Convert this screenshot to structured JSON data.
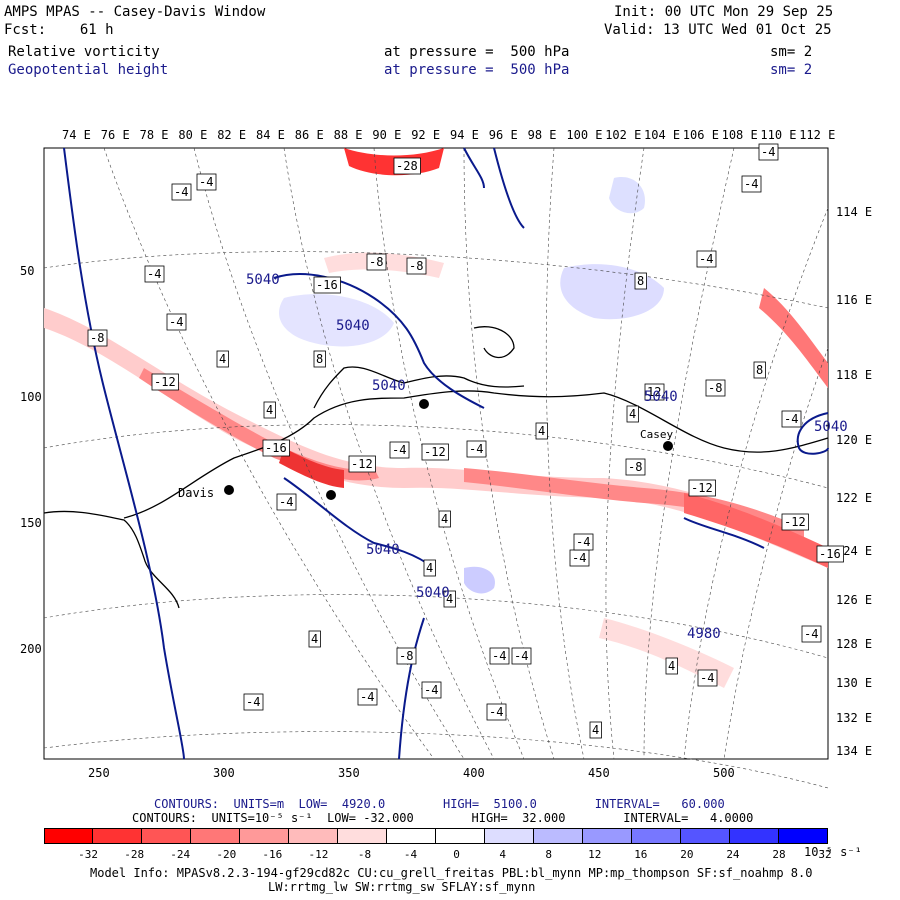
{
  "header": {
    "title": "AMPS MPAS -- Casey-Davis Window",
    "fcst": "Fcst:    61 h",
    "init": "Init: 00 UTC Mon 29 Sep 25",
    "valid": "Valid: 13 UTC Wed 01 Oct 25",
    "field1": "Relative vorticity",
    "field1_level": "at pressure =  500 hPa",
    "field1_sm": "sm= 2",
    "field2": "Geopotential height",
    "field2_level": "at pressure =  500 hPa",
    "field2_sm": "sm= 2"
  },
  "top_lon_labels": [
    "74 E",
    "76 E",
    "78 E",
    "80 E",
    "82 E",
    "84 E",
    "86 E",
    "88 E",
    "90 E",
    "92 E",
    "94 E",
    "96 E",
    "98 E",
    "100 E",
    "102 E",
    "104 E",
    "106 E",
    "108 E",
    "110 E",
    "112 E"
  ],
  "right_lon_labels": [
    "114 E",
    "116 E",
    "118 E",
    "120 E",
    "122 E",
    "124 E",
    "126 E",
    "128 E",
    "130 E",
    "132 E",
    "134 E"
  ],
  "left_axis_labels": [
    "50",
    "100",
    "150",
    "200"
  ],
  "bottom_axis_labels": [
    "250",
    "300",
    "350",
    "400",
    "450",
    "500"
  ],
  "stations": [
    "Davis",
    "Casey"
  ],
  "map_labels": {
    "height_contours": [
      "5040",
      "5040",
      "5040",
      "5040",
      "4980",
      "5040",
      "5040",
      "5040"
    ],
    "vort_labels": [
      "-4",
      "-4",
      "-8",
      "-4",
      "-12",
      "-8",
      "-16",
      "-16",
      "-12",
      "4",
      "8",
      "12",
      "4",
      "-4",
      "-8",
      "-4",
      "-4",
      "4",
      "-12",
      "-8",
      "4",
      "-12",
      "-12",
      "-16",
      "4",
      "-4",
      "8",
      "-4",
      "-4",
      "-4",
      "-8",
      "-4",
      "-4",
      "-8",
      "4",
      "4",
      "-4",
      "-4",
      "-4",
      "4",
      "-4",
      "-4",
      "-4",
      "-4",
      "4",
      "4",
      "8",
      "-28",
      "-4",
      "-4"
    ]
  },
  "contour_info": {
    "line1": "CONTOURS:  UNITS=m  LOW=  4920.0        HIGH=  5100.0        INTERVAL=   60.000",
    "line2": "CONTOURS:  UNITS=10⁻⁵ s⁻¹  LOW= -32.000        HIGH=  32.000        INTERVAL=   4.0000"
  },
  "colorbar": {
    "labels": [
      "-32",
      "-28",
      "-24",
      "-20",
      "-16",
      "-12",
      "-8",
      "-4",
      "0",
      "4",
      "8",
      "12",
      "16",
      "20",
      "24",
      "28",
      "32"
    ],
    "units": "10⁻⁵ s⁻¹",
    "colors": [
      "#ff0000",
      "#ff3333",
      "#ff5555",
      "#ff7777",
      "#ff9999",
      "#ffbbbb",
      "#ffdddd",
      "#ffffff",
      "#ffffff",
      "#ffffff",
      "#ddddff",
      "#bbbbff",
      "#9999ff",
      "#7777ff",
      "#5555ff",
      "#3333ff",
      "#0000ff"
    ]
  },
  "footer": {
    "line1": "Model Info: MPASv8.2.3-194-gf29cd82c CU:cu_grell_freitas PBL:bl_mynn MP:mp_thompson SF:sf_noahmp 8.0",
    "line2": "LW:rrtmg_lw SW:rrtmg_sw SFLAY:sf_mynn"
  }
}
